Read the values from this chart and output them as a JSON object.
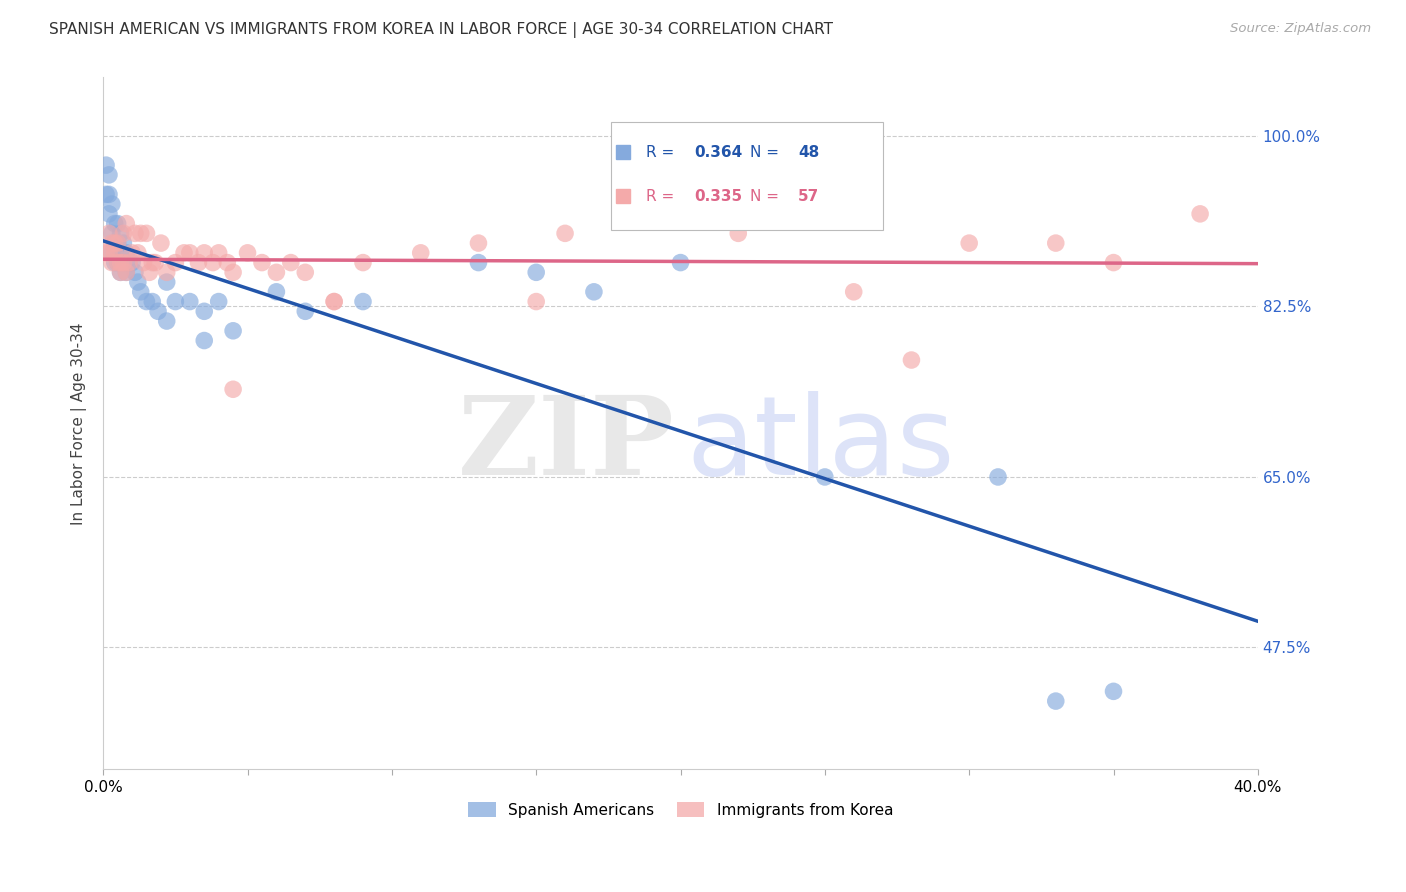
{
  "title": "SPANISH AMERICAN VS IMMIGRANTS FROM KOREA IN LABOR FORCE | AGE 30-34 CORRELATION CHART",
  "source": "Source: ZipAtlas.com",
  "ylabel": "In Labor Force | Age 30-34",
  "legend_blue_label": "Spanish Americans",
  "legend_pink_label": "Immigrants from Korea",
  "xmin": 0.0,
  "xmax": 0.4,
  "ymin": 0.35,
  "ymax": 1.06,
  "blue_R": 0.364,
  "blue_N": 48,
  "pink_R": 0.335,
  "pink_N": 57,
  "blue_color": "#85AADD",
  "pink_color": "#F4AAAA",
  "blue_line_color": "#2255AA",
  "pink_line_color": "#DD6688",
  "ytick_vals": [
    1.0,
    0.825,
    0.65,
    0.475
  ],
  "ytick_labels": [
    "100.0%",
    "82.5%",
    "65.0%",
    "47.5%"
  ],
  "grid_color": "#CCCCCC",
  "blue_x": [
    0.001,
    0.001,
    0.002,
    0.002,
    0.002,
    0.003,
    0.003,
    0.003,
    0.004,
    0.004,
    0.004,
    0.005,
    0.005,
    0.005,
    0.006,
    0.006,
    0.006,
    0.007,
    0.007,
    0.008,
    0.008,
    0.009,
    0.01,
    0.011,
    0.012,
    0.013,
    0.015,
    0.017,
    0.019,
    0.022,
    0.025,
    0.03,
    0.035,
    0.04,
    0.045,
    0.06,
    0.07,
    0.09,
    0.13,
    0.15,
    0.17,
    0.2,
    0.25,
    0.31,
    0.33,
    0.35,
    0.022,
    0.035
  ],
  "blue_y": [
    0.94,
    0.97,
    0.92,
    0.94,
    0.96,
    0.88,
    0.9,
    0.93,
    0.87,
    0.89,
    0.91,
    0.87,
    0.89,
    0.91,
    0.86,
    0.88,
    0.9,
    0.87,
    0.89,
    0.86,
    0.88,
    0.87,
    0.87,
    0.86,
    0.85,
    0.84,
    0.83,
    0.83,
    0.82,
    0.85,
    0.83,
    0.83,
    0.82,
    0.83,
    0.8,
    0.84,
    0.82,
    0.83,
    0.87,
    0.86,
    0.84,
    0.87,
    0.65,
    0.65,
    0.42,
    0.43,
    0.81,
    0.79
  ],
  "pink_x": [
    0.001,
    0.002,
    0.002,
    0.003,
    0.003,
    0.004,
    0.004,
    0.005,
    0.005,
    0.006,
    0.006,
    0.007,
    0.007,
    0.008,
    0.008,
    0.009,
    0.01,
    0.011,
    0.012,
    0.013,
    0.014,
    0.015,
    0.016,
    0.017,
    0.018,
    0.02,
    0.022,
    0.025,
    0.028,
    0.03,
    0.033,
    0.035,
    0.038,
    0.04,
    0.043,
    0.045,
    0.05,
    0.055,
    0.06,
    0.065,
    0.07,
    0.08,
    0.09,
    0.11,
    0.13,
    0.16,
    0.19,
    0.22,
    0.26,
    0.3,
    0.33,
    0.35,
    0.38,
    0.045,
    0.08,
    0.15,
    0.28
  ],
  "pink_y": [
    0.88,
    0.9,
    0.88,
    0.87,
    0.89,
    0.88,
    0.89,
    0.87,
    0.89,
    0.87,
    0.86,
    0.9,
    0.87,
    0.86,
    0.91,
    0.87,
    0.88,
    0.9,
    0.88,
    0.9,
    0.87,
    0.9,
    0.86,
    0.87,
    0.87,
    0.89,
    0.86,
    0.87,
    0.88,
    0.88,
    0.87,
    0.88,
    0.87,
    0.88,
    0.87,
    0.86,
    0.88,
    0.87,
    0.86,
    0.87,
    0.86,
    0.83,
    0.87,
    0.88,
    0.89,
    0.9,
    0.92,
    0.9,
    0.84,
    0.89,
    0.89,
    0.87,
    0.92,
    0.74,
    0.83,
    0.83,
    0.77
  ]
}
